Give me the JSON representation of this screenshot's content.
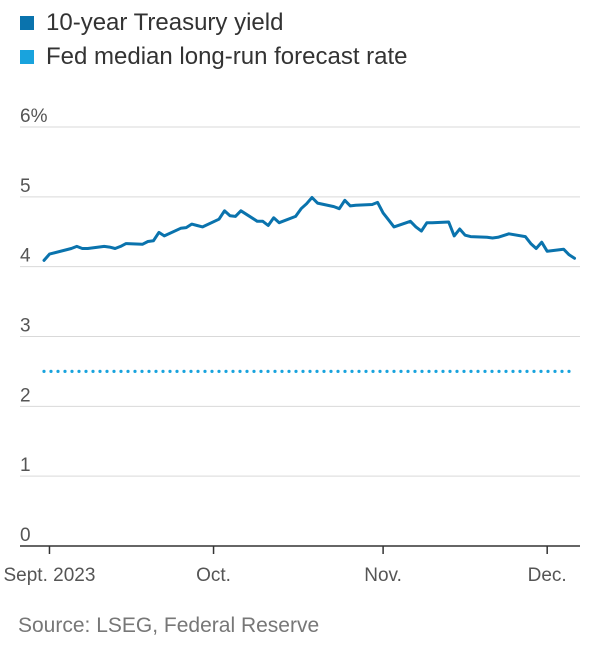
{
  "chart_data": {
    "type": "line",
    "legend": [
      {
        "label": "10-year Treasury yield",
        "color": "#0a73ad",
        "style": "solid"
      },
      {
        "label": "Fed median long-run forecast rate",
        "color": "#19a3dd",
        "style": "dotted"
      }
    ],
    "y_ticks": [
      "0",
      "1",
      "2",
      "3",
      "4",
      "5",
      "6%"
    ],
    "y_tick_values": [
      0,
      1,
      2,
      3,
      4,
      5,
      6
    ],
    "ylim": [
      0,
      6
    ],
    "x_ticks": [
      {
        "label": "Sept. 2023",
        "date": "2023-09-01"
      },
      {
        "label": "Oct.",
        "date": "2023-10-01"
      },
      {
        "label": "Nov.",
        "date": "2023-11-01"
      },
      {
        "label": "Dec.",
        "date": "2023-12-01"
      }
    ],
    "xlim": [
      "2023-08-31",
      "2023-12-07"
    ],
    "grid": "horizontal",
    "series": [
      {
        "name": "10-year Treasury yield",
        "color": "#0a73ad",
        "style": "solid",
        "x": [
          "2023-08-31",
          "2023-09-01",
          "2023-09-05",
          "2023-09-06",
          "2023-09-07",
          "2023-09-08",
          "2023-09-11",
          "2023-09-12",
          "2023-09-13",
          "2023-09-14",
          "2023-09-15",
          "2023-09-18",
          "2023-09-19",
          "2023-09-20",
          "2023-09-21",
          "2023-09-22",
          "2023-09-25",
          "2023-09-26",
          "2023-09-27",
          "2023-09-28",
          "2023-09-29",
          "2023-10-02",
          "2023-10-03",
          "2023-10-04",
          "2023-10-05",
          "2023-10-06",
          "2023-10-09",
          "2023-10-10",
          "2023-10-11",
          "2023-10-12",
          "2023-10-13",
          "2023-10-16",
          "2023-10-17",
          "2023-10-18",
          "2023-10-19",
          "2023-10-20",
          "2023-10-23",
          "2023-10-24",
          "2023-10-25",
          "2023-10-26",
          "2023-10-27",
          "2023-10-30",
          "2023-10-31",
          "2023-11-01",
          "2023-11-02",
          "2023-11-03",
          "2023-11-06",
          "2023-11-07",
          "2023-11-08",
          "2023-11-09",
          "2023-11-10",
          "2023-11-13",
          "2023-11-14",
          "2023-11-15",
          "2023-11-16",
          "2023-11-17",
          "2023-11-20",
          "2023-11-21",
          "2023-11-22",
          "2023-11-24",
          "2023-11-27",
          "2023-11-28",
          "2023-11-29",
          "2023-11-30",
          "2023-12-01",
          "2023-12-04",
          "2023-12-05",
          "2023-12-06"
        ],
        "values": [
          4.09,
          4.18,
          4.26,
          4.29,
          4.26,
          4.26,
          4.29,
          4.28,
          4.26,
          4.29,
          4.33,
          4.32,
          4.36,
          4.37,
          4.49,
          4.44,
          4.55,
          4.56,
          4.61,
          4.59,
          4.57,
          4.68,
          4.8,
          4.73,
          4.72,
          4.8,
          4.65,
          4.65,
          4.59,
          4.7,
          4.63,
          4.72,
          4.83,
          4.9,
          4.99,
          4.91,
          4.86,
          4.83,
          4.95,
          4.87,
          4.88,
          4.89,
          4.92,
          4.77,
          4.67,
          4.57,
          4.65,
          4.57,
          4.51,
          4.63,
          4.63,
          4.64,
          4.44,
          4.54,
          4.45,
          4.43,
          4.42,
          4.41,
          4.42,
          4.47,
          4.43,
          4.33,
          4.26,
          4.35,
          4.22,
          4.25,
          4.17,
          4.12
        ]
      },
      {
        "name": "Fed median long-run forecast rate",
        "color": "#19a3dd",
        "style": "dotted",
        "x": [
          "2023-08-31",
          "2023-12-06"
        ],
        "values": [
          2.5,
          2.5
        ]
      }
    ]
  },
  "source": "Source: LSEG, Federal Reserve"
}
